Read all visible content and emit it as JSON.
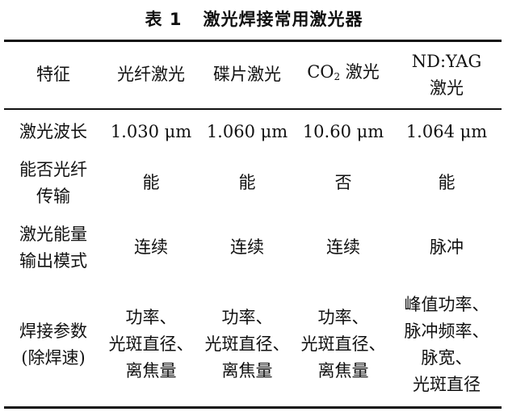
{
  "title": {
    "number": "表 1",
    "text": "激光焊接常用激光器"
  },
  "table": {
    "headers": [
      "特征",
      "光纤激光",
      "碟片激光",
      "CO",
      "2",
      " 激光",
      "ND:YAG\n激光"
    ],
    "header_cells": {
      "feature": "特征",
      "fiber": "光纤激光",
      "disk": "碟片激光",
      "co2_main": "CO",
      "co2_sub": "2",
      "co2_suffix": " 激光",
      "ndyag_line1": "ND:YAG",
      "ndyag_line2": "激光"
    },
    "rows": [
      {
        "label": [
          "激光波长"
        ],
        "values": [
          [
            "1.030 μm"
          ],
          [
            "1.060 μm"
          ],
          [
            "10.60 μm"
          ],
          [
            "1.064 μm"
          ]
        ]
      },
      {
        "label": [
          "能否光纤",
          "传输"
        ],
        "values": [
          [
            "能"
          ],
          [
            "能"
          ],
          [
            "否"
          ],
          [
            "能"
          ]
        ]
      },
      {
        "label": [
          "激光能量",
          "输出模式"
        ],
        "values": [
          [
            "连续"
          ],
          [
            "连续"
          ],
          [
            "连续"
          ],
          [
            "脉冲"
          ]
        ]
      },
      {
        "label": [
          "焊接参数",
          "(除焊速)"
        ],
        "values": [
          [
            "功率、",
            "光斑直径、",
            "离焦量"
          ],
          [
            "功率、",
            "光斑直径、",
            "离焦量"
          ],
          [
            "功率、",
            "光斑直径、",
            "离焦量"
          ],
          [
            "峰值功率、",
            "脉冲频率、",
            "脉宽、",
            "光斑直径"
          ]
        ]
      }
    ]
  }
}
